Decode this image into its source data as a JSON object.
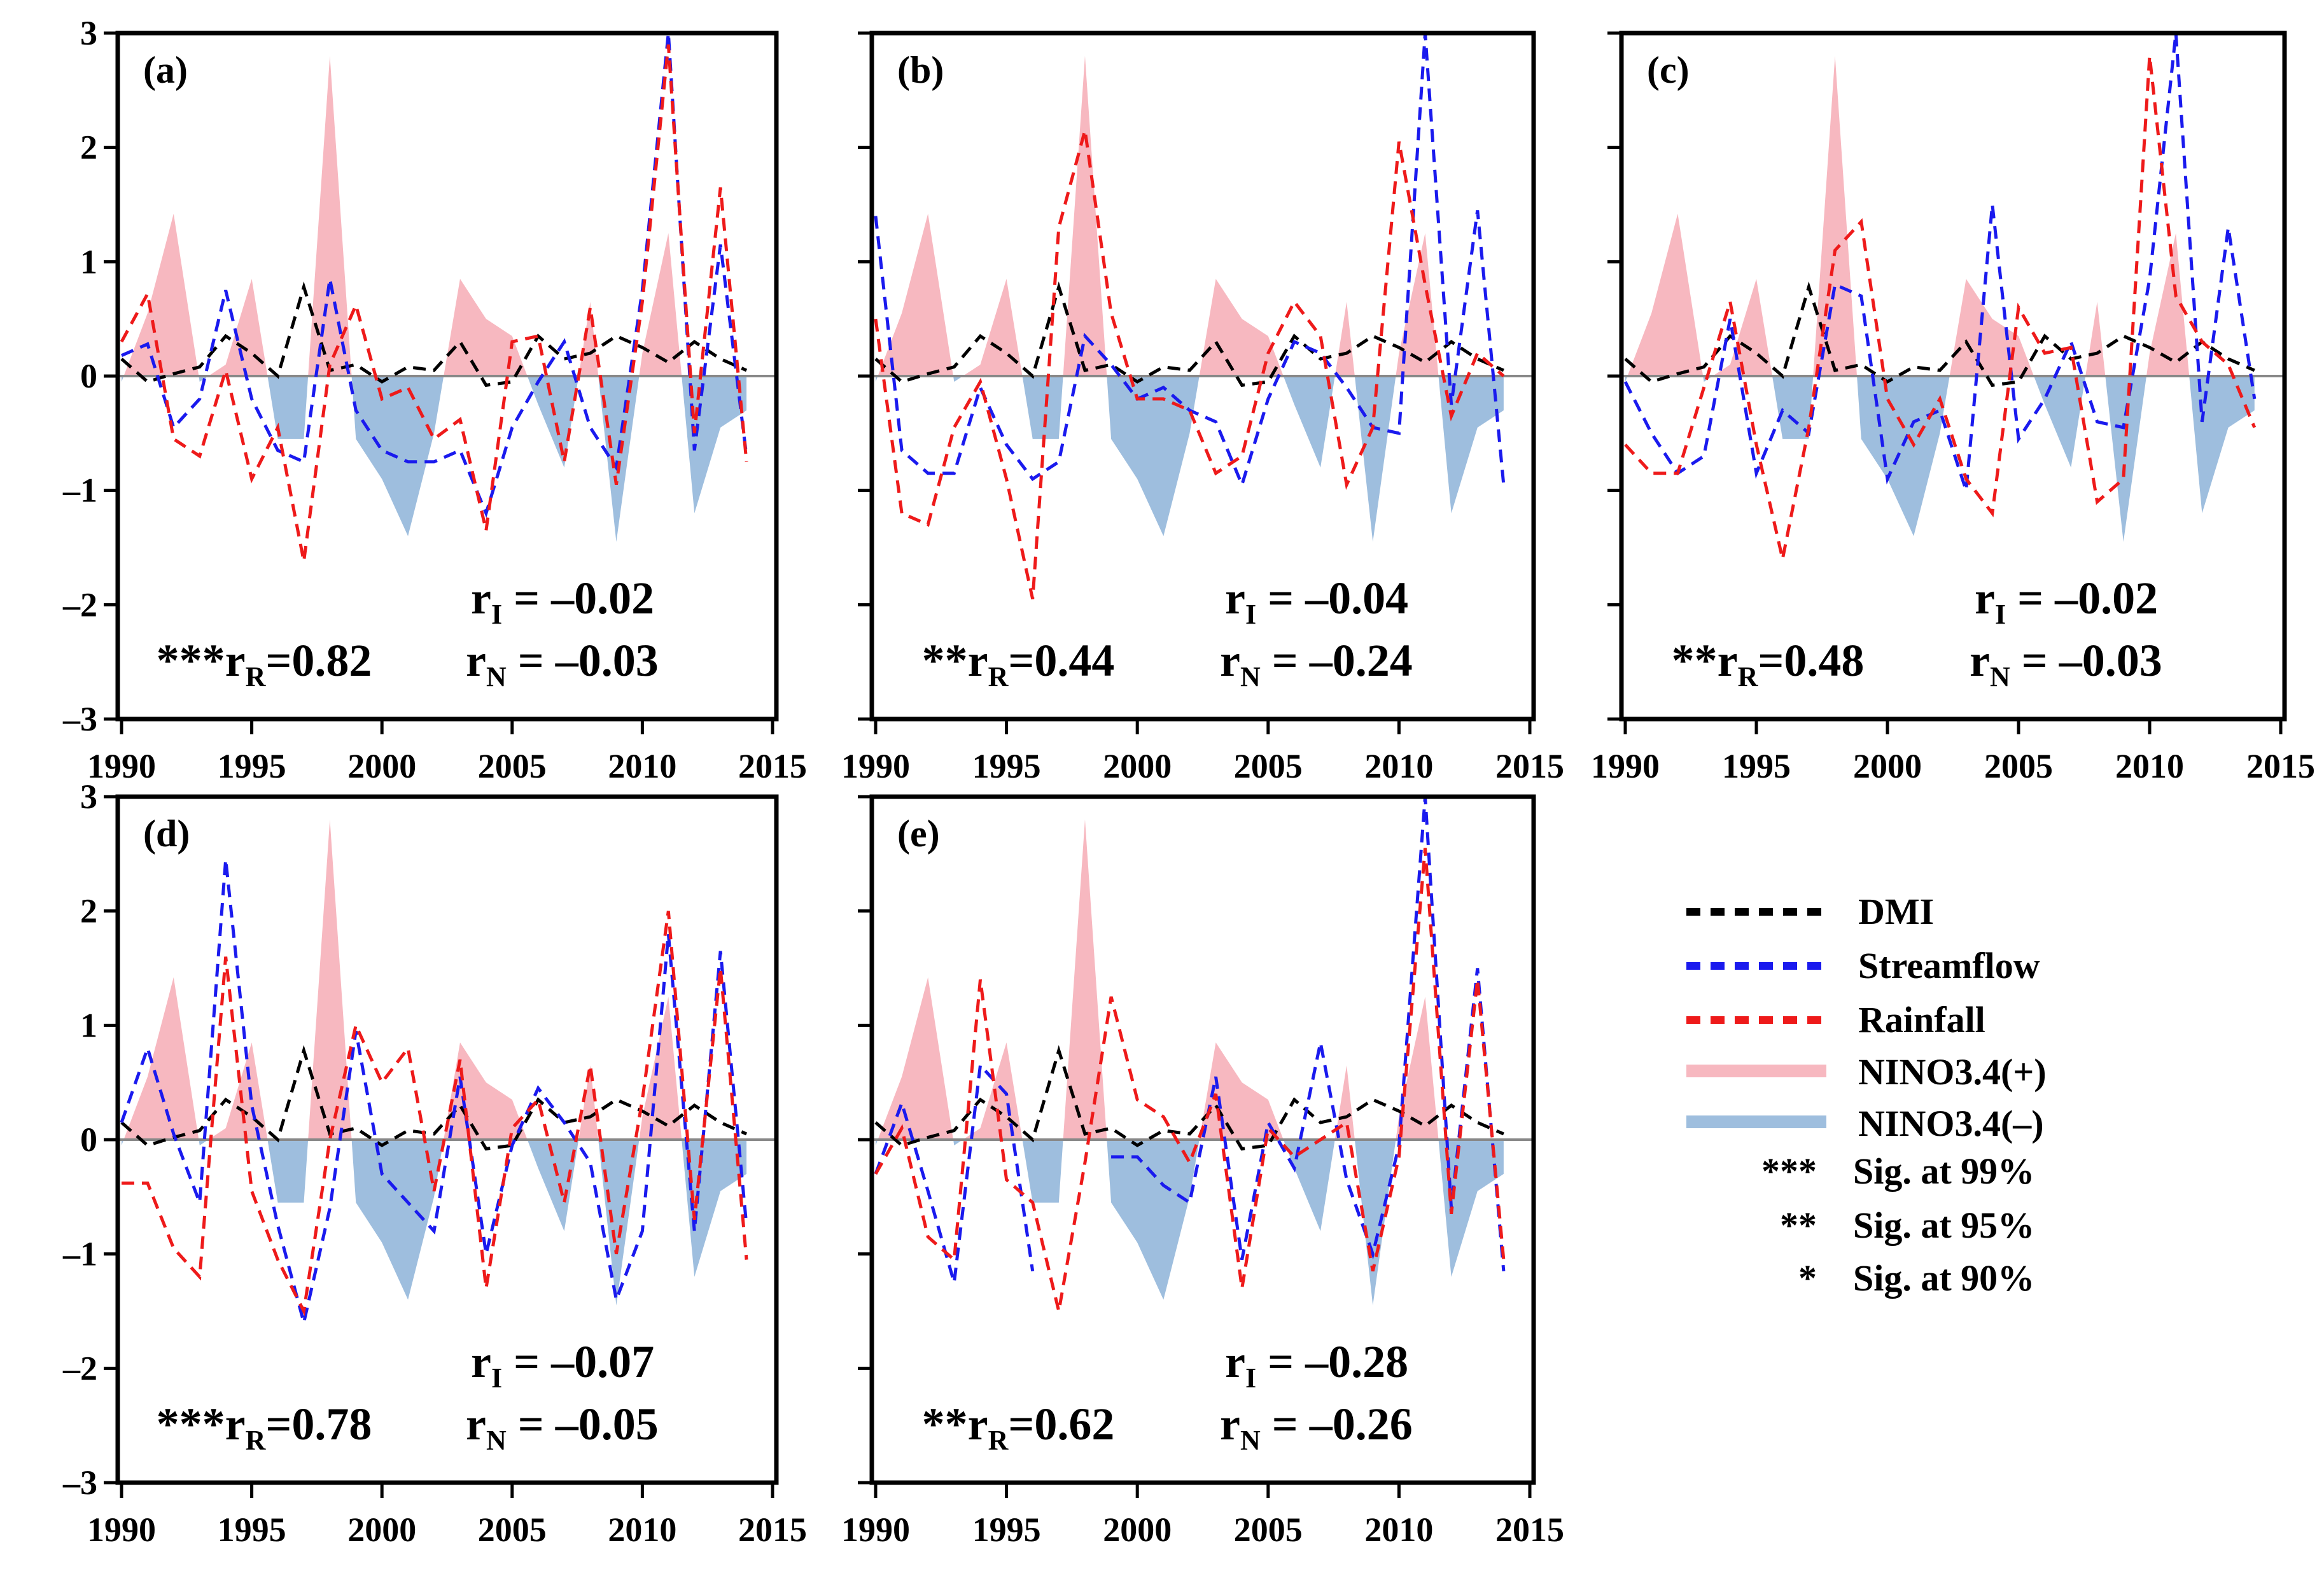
{
  "chart_data": {
    "type": "line",
    "ylim": [
      -3,
      3
    ],
    "yticks": [
      "3",
      "2",
      "1",
      "0",
      "-1",
      "-2",
      "-3"
    ],
    "xlim": [
      1990,
      2015
    ],
    "xticks": [
      "1990",
      "1995",
      "2000",
      "2005",
      "2010",
      "2015"
    ],
    "x": [
      1990,
      1991,
      1992,
      1993,
      1994,
      1995,
      1996,
      1997,
      1998,
      1999,
      2000,
      2001,
      2002,
      2003,
      2004,
      2005,
      2006,
      2007,
      2008,
      2009,
      2010,
      2011,
      2012,
      2013,
      2014
    ],
    "colors": {
      "dmi": "#000000",
      "streamflow": "#1a1aee",
      "rainfall": "#ee1a1a",
      "nino_pos": "#f7b8c0",
      "nino_neg": "#9ebede"
    },
    "shared_series": {
      "DMI": [
        0.15,
        -0.05,
        0.02,
        0.08,
        0.35,
        0.2,
        0.0,
        0.78,
        0.05,
        0.1,
        -0.05,
        0.08,
        0.05,
        0.3,
        -0.08,
        -0.05,
        0.35,
        0.15,
        0.2,
        0.35,
        0.25,
        0.12,
        0.3,
        0.15,
        0.05
      ],
      "NINO3.4": [
        -0.05,
        0.55,
        1.42,
        -0.05,
        0.1,
        0.85,
        -0.55,
        -0.55,
        2.8,
        -0.55,
        -0.9,
        -1.4,
        -0.5,
        0.85,
        0.5,
        0.35,
        -0.25,
        -0.8,
        0.65,
        -1.45,
        0.2,
        1.25,
        -1.2,
        -0.45,
        -0.3
      ]
    },
    "panels": [
      {
        "label": "(a)",
        "stars": "***",
        "r_R": "0.82",
        "r_I": "–0.02",
        "r_N": "–0.03",
        "streamflow": [
          0.18,
          0.28,
          -0.45,
          -0.2,
          0.75,
          -0.2,
          -0.65,
          -0.75,
          0.85,
          -0.3,
          -0.65,
          -0.75,
          -0.75,
          -0.65,
          -1.2,
          -0.45,
          -0.05,
          0.3,
          -0.45,
          -0.8,
          0.75,
          3.0,
          -0.65,
          1.15,
          -0.7
        ],
        "rainfall": [
          0.3,
          0.72,
          -0.55,
          -0.7,
          0.05,
          -0.9,
          -0.45,
          -1.62,
          0.1,
          0.62,
          -0.2,
          -0.1,
          -0.55,
          -0.38,
          -1.35,
          0.3,
          0.35,
          -0.75,
          0.6,
          -0.95,
          0.65,
          2.9,
          -0.5,
          1.65,
          -0.75
        ]
      },
      {
        "label": "(b)",
        "stars": "**",
        "r_R": "0.44",
        "r_I": "–0.04",
        "r_N": "–0.24",
        "streamflow": [
          1.4,
          -0.65,
          -0.85,
          -0.85,
          -0.1,
          -0.6,
          -0.9,
          -0.75,
          0.35,
          0.1,
          -0.2,
          -0.1,
          -0.3,
          -0.4,
          -0.95,
          -0.2,
          0.3,
          0.2,
          -0.1,
          -0.45,
          -0.5,
          3.0,
          -0.25,
          1.45,
          -0.95
        ],
        "rainfall": [
          0.5,
          -1.2,
          -1.3,
          -0.45,
          -0.05,
          -0.9,
          -1.95,
          1.3,
          2.15,
          0.55,
          -0.2,
          -0.2,
          -0.3,
          -0.85,
          -0.7,
          0.2,
          0.65,
          0.35,
          -0.95,
          -0.45,
          2.05,
          0.8,
          -0.35,
          0.2,
          0.0
        ]
      },
      {
        "label": "(c)",
        "stars": "**",
        "r_R": "0.48",
        "r_I": "–0.02",
        "r_N": "–0.03",
        "streamflow": [
          -0.05,
          -0.5,
          -0.85,
          -0.7,
          0.5,
          -0.85,
          -0.3,
          -0.5,
          0.8,
          0.7,
          -0.9,
          -0.4,
          -0.3,
          -1.0,
          1.5,
          -0.55,
          -0.2,
          0.3,
          -0.4,
          -0.45,
          0.85,
          3.0,
          -0.4,
          1.3,
          -0.2
        ],
        "rainfall": [
          -0.6,
          -0.85,
          -0.85,
          -0.1,
          0.65,
          -0.6,
          -1.6,
          -0.45,
          1.1,
          1.35,
          -0.2,
          -0.6,
          -0.2,
          -0.9,
          -1.2,
          0.6,
          0.2,
          0.25,
          -1.1,
          -0.9,
          2.8,
          0.7,
          0.3,
          0.1,
          -0.45
        ]
      },
      {
        "label": "(d)",
        "stars": "***",
        "r_R": "0.78",
        "r_I": "–0.07",
        "r_N": "–0.05",
        "streamflow": [
          0.15,
          0.8,
          0.05,
          -0.55,
          2.45,
          0.3,
          -0.75,
          -1.6,
          -0.6,
          0.95,
          -0.3,
          -0.55,
          -0.8,
          0.55,
          -1.0,
          -0.05,
          0.45,
          0.15,
          -0.2,
          -1.4,
          -0.8,
          1.8,
          -0.8,
          1.65,
          -0.75
        ],
        "rainfall": [
          -0.38,
          -0.38,
          -0.95,
          -1.2,
          1.6,
          -0.45,
          -1.05,
          -1.5,
          0.0,
          1.0,
          0.5,
          0.8,
          -0.45,
          0.7,
          -1.3,
          0.1,
          0.35,
          -0.55,
          0.65,
          -1.0,
          0.35,
          2.0,
          -0.7,
          1.5,
          -1.05
        ]
      },
      {
        "label": "(e)",
        "stars": "**",
        "r_R": "0.62",
        "r_I": "–0.28",
        "r_N": "–0.26",
        "streamflow": [
          -0.3,
          0.32,
          -0.45,
          -1.25,
          0.65,
          0.4,
          -1.15,
          null,
          null,
          -0.15,
          -0.15,
          -0.4,
          -0.55,
          0.55,
          -1.05,
          0.15,
          -0.25,
          0.85,
          -0.35,
          -1.0,
          -0.05,
          3.0,
          -0.6,
          1.5,
          -1.15
        ],
        "rainfall": [
          -0.3,
          0.1,
          -0.85,
          -1.05,
          1.4,
          -0.35,
          -0.55,
          -1.5,
          -0.2,
          1.25,
          0.35,
          0.2,
          -0.2,
          0.4,
          -1.3,
          0.1,
          -0.15,
          0.0,
          0.15,
          -1.15,
          -0.15,
          2.55,
          -0.65,
          1.4,
          -1.05
        ]
      }
    ],
    "legend": {
      "entries": [
        "DMI",
        "Streamflow",
        "Rainfall",
        "NINO3.4(+)",
        "NINO3.4(–)"
      ],
      "significance": [
        {
          "stars": "***",
          "text": "Sig. at 99%"
        },
        {
          "stars": "**",
          "text": "Sig. at 95%"
        },
        {
          "stars": "*",
          "text": "Sig. at 90%"
        }
      ]
    }
  }
}
